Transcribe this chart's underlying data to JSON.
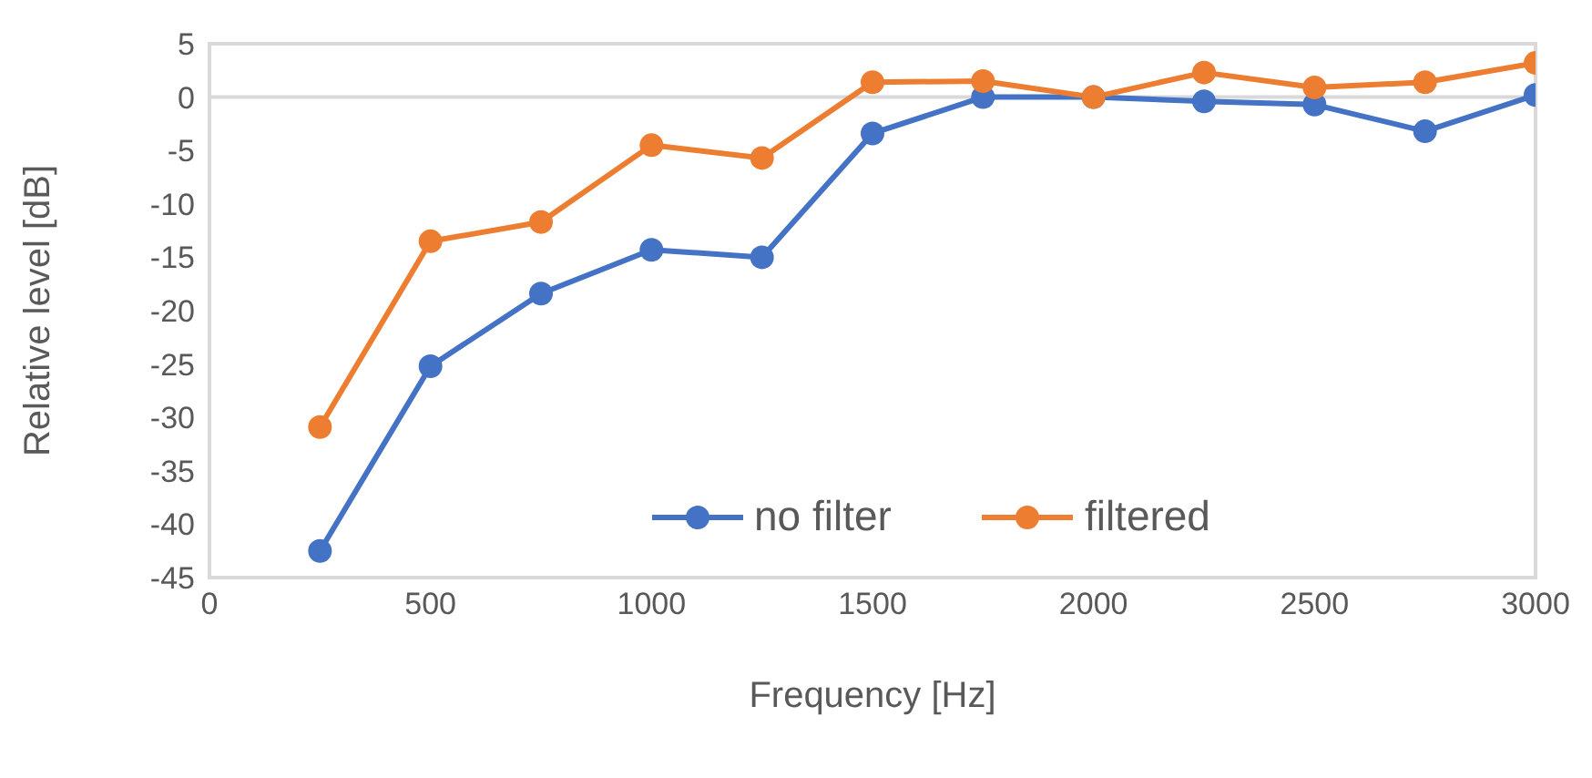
{
  "chart_data": {
    "type": "line",
    "xlabel": "Frequency [Hz]",
    "ylabel": "Relative level [dB]",
    "x": [
      250,
      500,
      750,
      1000,
      1250,
      1500,
      1750,
      2000,
      2250,
      2500,
      2750,
      3000
    ],
    "series": [
      {
        "name": "no filter",
        "color": "#4472c4",
        "values": [
          -42.5,
          -25.2,
          -18.4,
          -14.3,
          -15.0,
          -3.4,
          0,
          0,
          -0.4,
          -0.7,
          -3.2,
          0.2
        ]
      },
      {
        "name": "filtered",
        "color": "#ed7d31",
        "values": [
          -30.9,
          -13.5,
          -11.7,
          -4.5,
          -5.7,
          1.4,
          1.5,
          0,
          2.3,
          0.9,
          1.4,
          3.2
        ]
      }
    ],
    "xlim": [
      0,
      3000
    ],
    "xticks": [
      0,
      500,
      1000,
      1500,
      2000,
      2500,
      3000
    ],
    "ylim": [
      -45,
      5
    ],
    "yticks": [
      -45,
      -40,
      -35,
      -30,
      -25,
      -20,
      -15,
      -10,
      -5,
      0,
      5
    ],
    "ref_lines": [
      {
        "axis": "y",
        "value": 0,
        "color": "#d9d9d9"
      }
    ],
    "grid": false,
    "legend": "bottom",
    "marker": "circle",
    "line_style": "solid"
  }
}
